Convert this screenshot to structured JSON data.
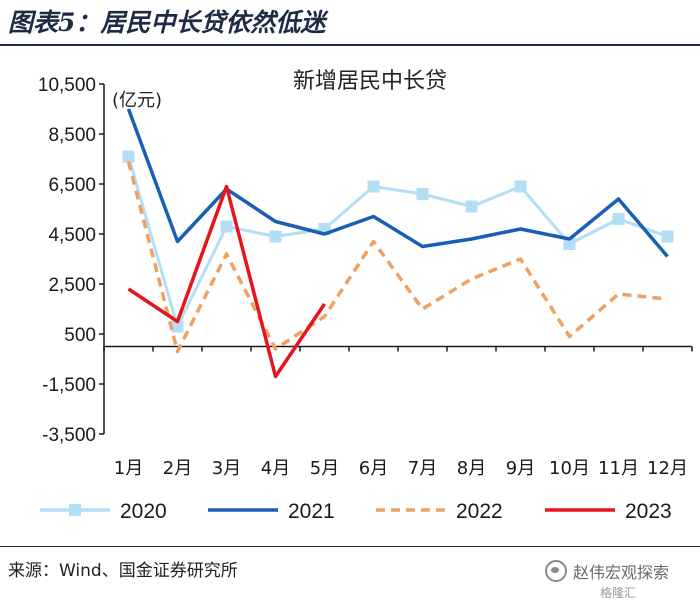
{
  "figure_title": "图表5：居民中长贷依然低迷",
  "source_note": "来源：Wind、国金证券研究所",
  "watermark": {
    "text": "赵伟宏观探索",
    "logo_text": "格隆汇"
  },
  "colors": {
    "2020": "#b3def5",
    "2021": "#1a5fb4",
    "2022": "#f0a060",
    "2023": "#e8141c",
    "axis": "#1a1a1a",
    "title_bar": "#1f2a44"
  },
  "chart_data": {
    "type": "line",
    "title": "新增居民中长贷",
    "ylabel": "(亿元)",
    "xlabel": "",
    "categories": [
      "1月",
      "2月",
      "3月",
      "4月",
      "5月",
      "6月",
      "7月",
      "8月",
      "9月",
      "10月",
      "11月",
      "12月"
    ],
    "ylim": [
      -3500,
      10500
    ],
    "yticks": [
      "10,500",
      "8,500",
      "6,500",
      "4,500",
      "2,500",
      "500",
      "-1,500",
      "-3,500"
    ],
    "ytick_values": [
      10500,
      8500,
      6500,
      4500,
      2500,
      500,
      -1500,
      -3500
    ],
    "grid": false,
    "legend_position": "bottom",
    "series": [
      {
        "name": "2020",
        "style": "solid-square-markers",
        "values": [
          7600,
          800,
          4800,
          4400,
          4700,
          6400,
          6100,
          5600,
          6400,
          4100,
          5100,
          4400
        ]
      },
      {
        "name": "2021",
        "style": "solid",
        "values": [
          9500,
          4200,
          6300,
          5000,
          4500,
          5200,
          4000,
          4300,
          4700,
          4300,
          5900,
          3600
        ]
      },
      {
        "name": "2022",
        "style": "dashed",
        "values": [
          7400,
          -200,
          3700,
          -100,
          1200,
          4200,
          1500,
          2700,
          3500,
          400,
          2100,
          1900
        ]
      },
      {
        "name": "2023",
        "style": "solid",
        "values": [
          2300,
          1000,
          6400,
          -1200,
          1700,
          null,
          null,
          null,
          null,
          null,
          null,
          null
        ]
      }
    ]
  }
}
